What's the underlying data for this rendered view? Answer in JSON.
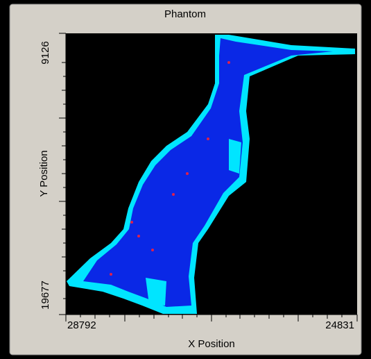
{
  "chart_data": {
    "type": "image",
    "title": "Phantom",
    "x_label": "X Position",
    "y_label": "Y Position",
    "xlim": [
      28792,
      24831
    ],
    "ylim": [
      19677,
      9126
    ],
    "xticks": [
      28792,
      24831
    ],
    "yticks": [
      9126,
      19677
    ]
  }
}
